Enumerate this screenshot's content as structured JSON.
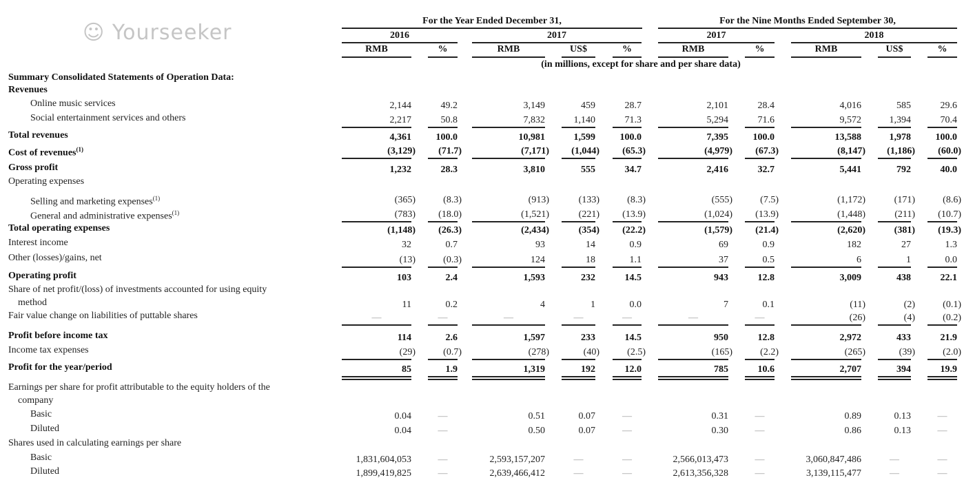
{
  "header": {
    "group_year": "For the Year Ended December 31,",
    "group_nine_months": "For the Nine Months Ended September 30,",
    "years": [
      "2016",
      "2017",
      "2017",
      "2018"
    ],
    "columns": [
      "RMB",
      "%",
      "RMB",
      "US$",
      "%",
      "RMB",
      "%",
      "RMB",
      "US$",
      "%"
    ],
    "units_note": "(in millions, except for share and per share data)"
  },
  "rows": [
    {
      "label": "Summary Consolidated Statements of Operation Data:",
      "bold": true,
      "values": []
    },
    {
      "label": "Revenues",
      "bold": true,
      "values": []
    },
    {
      "label": "Online music services",
      "indent": 1,
      "values": [
        "2,144",
        "49.2",
        "3,149",
        "459",
        "28.7",
        "2,101",
        "28.4",
        "4,016",
        "585",
        "29.6"
      ]
    },
    {
      "label": "Social entertainment services and others",
      "indent": 1,
      "underline": "single",
      "values": [
        "2,217",
        "50.8",
        "7,832",
        "1,140",
        "71.3",
        "5,294",
        "71.6",
        "9,572",
        "1,394",
        "70.4"
      ]
    },
    {
      "label": "Total revenues",
      "bold": true,
      "values": [
        "4,361",
        "100.0",
        "10,981",
        "1,599",
        "100.0",
        "7,395",
        "100.0",
        "13,588",
        "1,978",
        "100.0"
      ]
    },
    {
      "label": "Cost of revenues",
      "sup": "(1)",
      "bold": true,
      "underline": "single",
      "values": [
        "(3,129)",
        "(71.7)",
        "(7,171)",
        "(1,044)",
        "(65.3)",
        "(4,979)",
        "(67.3)",
        "(8,147)",
        "(1,186)",
        "(60.0)"
      ]
    },
    {
      "label": "Gross profit",
      "bold": true,
      "values": [
        "1,232",
        "28.3",
        "3,810",
        "555",
        "34.7",
        "2,416",
        "32.7",
        "5,441",
        "792",
        "40.0"
      ]
    },
    {
      "label": "Operating expenses",
      "values": []
    },
    {
      "label": "Selling and marketing expenses",
      "sup": "(1)",
      "indent": 1,
      "values": [
        "(365)",
        "(8.3)",
        "(913)",
        "(133)",
        "(8.3)",
        "(555)",
        "(7.5)",
        "(1,172)",
        "(171)",
        "(8.6)"
      ]
    },
    {
      "label": "General and administrative expenses",
      "sup": "(1)",
      "indent": 1,
      "underline": "single",
      "values": [
        "(783)",
        "(18.0)",
        "(1,521)",
        "(221)",
        "(13.9)",
        "(1,024)",
        "(13.9)",
        "(1,448)",
        "(211)",
        "(10.7)"
      ]
    },
    {
      "label": "Total operating expenses",
      "bold": true,
      "values": [
        "(1,148)",
        "(26.3)",
        "(2,434)",
        "(354)",
        "(22.2)",
        "(1,579)",
        "(21.4)",
        "(2,620)",
        "(381)",
        "(19.3)"
      ]
    },
    {
      "label": "Interest income",
      "values": [
        "32",
        "0.7",
        "93",
        "14",
        "0.9",
        "69",
        "0.9",
        "182",
        "27",
        "1.3"
      ]
    },
    {
      "label": "Other (losses)/gains, net",
      "underline": "single",
      "values": [
        "(13)",
        "(0.3)",
        "124",
        "18",
        "1.1",
        "37",
        "0.5",
        "6",
        "1",
        "0.0"
      ]
    },
    {
      "label": "Operating profit",
      "bold": true,
      "values": [
        "103",
        "2.4",
        "1,593",
        "232",
        "14.5",
        "943",
        "12.8",
        "3,009",
        "438",
        "22.1"
      ]
    },
    {
      "label": "Share of net profit/(loss) of investments accounted for using equity",
      "label2": "method",
      "values": [
        "11",
        "0.2",
        "4",
        "1",
        "0.0",
        "7",
        "0.1",
        "(11)",
        "(2)",
        "(0.1)"
      ]
    },
    {
      "label": "Fair value change on liabilities of puttable shares",
      "underline": "single",
      "values": [
        "—",
        "—",
        "—",
        "—",
        "—",
        "—",
        "—",
        "(26)",
        "(4)",
        "(0.2)"
      ]
    },
    {
      "label": "Profit before income tax",
      "bold": true,
      "values": [
        "114",
        "2.6",
        "1,597",
        "233",
        "14.5",
        "950",
        "12.8",
        "2,972",
        "433",
        "21.9"
      ]
    },
    {
      "label": "Income tax expenses",
      "underline": "single",
      "values": [
        "(29)",
        "(0.7)",
        "(278)",
        "(40)",
        "(2.5)",
        "(165)",
        "(2.2)",
        "(265)",
        "(39)",
        "(2.0)"
      ]
    },
    {
      "label": "Profit for the year/period",
      "bold": true,
      "underline": "double",
      "values": [
        "85",
        "1.9",
        "1,319",
        "192",
        "12.0",
        "785",
        "10.6",
        "2,707",
        "394",
        "19.9"
      ]
    },
    {
      "label": "Earnings per share for profit attributable to the equity holders of the",
      "label2": "company",
      "values": []
    },
    {
      "label": "Basic",
      "indent": 1,
      "values": [
        "0.04",
        "—",
        "0.51",
        "0.07",
        "—",
        "0.31",
        "—",
        "0.89",
        "0.13",
        "—"
      ]
    },
    {
      "label": "Diluted",
      "indent": 1,
      "values": [
        "0.04",
        "—",
        "0.50",
        "0.07",
        "—",
        "0.30",
        "—",
        "0.86",
        "0.13",
        "—"
      ]
    },
    {
      "label": "Shares used in calculating earnings per share",
      "values": []
    },
    {
      "label": "Basic",
      "indent": 1,
      "values": [
        "1,831,604,053",
        "—",
        "2,593,157,207",
        "—",
        "—",
        "2,566,013,473",
        "—",
        "3,060,847,486",
        "—",
        "—"
      ]
    },
    {
      "label": "Diluted",
      "indent": 1,
      "values": [
        "1,899,419,825",
        "—",
        "2,639,466,412",
        "—",
        "—",
        "2,613,356,328",
        "—",
        "3,139,115,477",
        "—",
        "—"
      ]
    }
  ],
  "watermark": "Yourseeker"
}
